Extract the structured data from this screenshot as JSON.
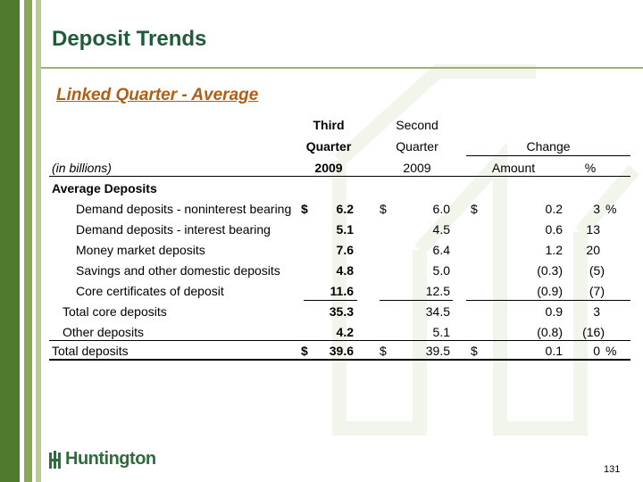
{
  "title": "Deposit Trends",
  "subtitle": "Linked Quarter - Average",
  "table": {
    "header": {
      "col1_line1": "Third",
      "col1_line2": "Quarter",
      "col1_line3": "2009",
      "col2_line1": "Second",
      "col2_line2": "Quarter",
      "col2_line3": "2009",
      "change": "Change",
      "amount": "Amount",
      "pct": "%",
      "units": "(in billions)"
    },
    "section": "Average Deposits",
    "rows": [
      {
        "label": "Demand deposits - noninterest bearing",
        "cur_sym": "$",
        "cur": "6.2",
        "prev_sym": "$",
        "prev": "6.0",
        "amt_sym": "$",
        "amt": "0.2",
        "pct": "3",
        "pct_sym": "%"
      },
      {
        "label": "Demand deposits - interest bearing",
        "cur_sym": "",
        "cur": "5.1",
        "prev_sym": "",
        "prev": "4.5",
        "amt_sym": "",
        "amt": "0.6",
        "pct": "13",
        "pct_sym": ""
      },
      {
        "label": "Money market deposits",
        "cur_sym": "",
        "cur": "7.6",
        "prev_sym": "",
        "prev": "6.4",
        "amt_sym": "",
        "amt": "1.2",
        "pct": "20",
        "pct_sym": ""
      },
      {
        "label": "Savings and other domestic deposits",
        "cur_sym": "",
        "cur": "4.8",
        "prev_sym": "",
        "prev": "5.0",
        "amt_sym": "",
        "amt": "(0.3)",
        "pct": "(5)",
        "pct_sym": ""
      },
      {
        "label": "Core certificates of deposit",
        "cur_sym": "",
        "cur": "11.6",
        "prev_sym": "",
        "prev": "12.5",
        "amt_sym": "",
        "amt": "(0.9)",
        "pct": "(7)",
        "pct_sym": ""
      },
      {
        "label": "Total core deposits",
        "cur_sym": "",
        "cur": "35.3",
        "prev_sym": "",
        "prev": "34.5",
        "amt_sym": "",
        "amt": "0.9",
        "pct": "3",
        "pct_sym": ""
      },
      {
        "label": "Other deposits",
        "cur_sym": "",
        "cur": "4.2",
        "prev_sym": "",
        "prev": "5.1",
        "amt_sym": "",
        "amt": "(0.8)",
        "pct": "(16)",
        "pct_sym": ""
      },
      {
        "label": "Total deposits",
        "cur_sym": "$",
        "cur": "39.6",
        "prev_sym": "$",
        "prev": "39.5",
        "amt_sym": "$",
        "amt": "0.1",
        "pct": "0",
        "pct_sym": "%"
      }
    ]
  },
  "footer": {
    "logo_text": "Huntington",
    "page_number": "131"
  },
  "colors": {
    "title": "#1f5c3a",
    "subtitle": "#b25d10",
    "stripe_dark": "#4f7a2e",
    "stripe_light": "#8aa85a"
  }
}
